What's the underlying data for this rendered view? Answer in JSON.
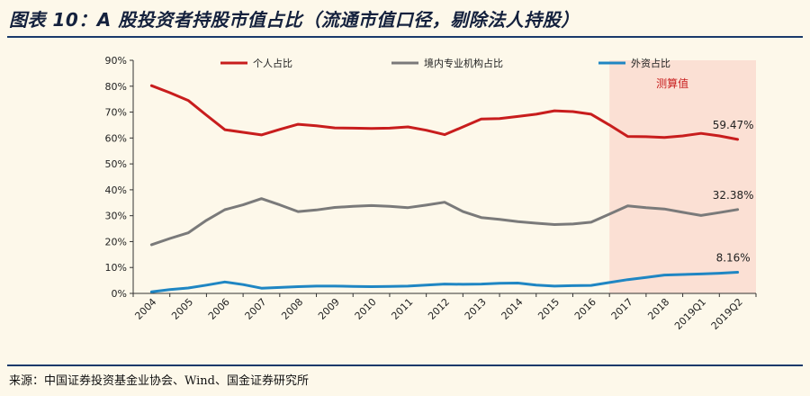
{
  "header": {
    "title": "图表 10：A 股投资者持股市值占比（流通市值口径，剔除法人持股）"
  },
  "footer": {
    "source": "来源：中国证券投资基金业协会、Wind、国金证券研究所"
  },
  "chart_data": {
    "type": "line",
    "title": "图表 10：A 股投资者持股市值占比（流通市值口径，剔除法人持股）",
    "xlabel": "",
    "ylabel": "",
    "ylim": [
      0,
      90
    ],
    "yticks": [
      "0%",
      "10%",
      "20%",
      "30%",
      "40%",
      "50%",
      "60%",
      "70%",
      "80%",
      "90%"
    ],
    "categories": [
      "2004",
      "2005",
      "2006",
      "2007",
      "2008",
      "2009",
      "2010",
      "2011",
      "2012",
      "2013",
      "2014",
      "2015",
      "2016",
      "2017",
      "2018",
      "2019Q1",
      "2019Q2"
    ],
    "x": [
      0,
      0.5,
      1,
      1.5,
      2,
      2.5,
      3,
      3.5,
      4,
      4.5,
      5,
      5.5,
      6,
      6.5,
      7,
      7.5,
      8,
      8.5,
      9,
      9.5,
      10,
      10.5,
      11,
      11.5,
      12,
      12.5,
      13,
      13.5,
      14,
      14.5,
      15,
      15.5,
      16
    ],
    "series": [
      {
        "name": "个人占比",
        "color": "#c81d1d",
        "values": [
          80.2,
          77.5,
          74.5,
          68.8,
          63.2,
          62.2,
          61.2,
          63.3,
          65.3,
          64.7,
          63.9,
          63.8,
          63.7,
          63.8,
          64.3,
          63.0,
          61.3,
          64.3,
          67.3,
          67.5,
          68.3,
          69.2,
          70.5,
          70.2,
          69.2,
          65.0,
          60.6,
          60.5,
          60.2,
          60.8,
          61.8,
          60.8,
          59.47
        ]
      },
      {
        "name": "境内专业机构占比",
        "color": "#7a7a7a",
        "values": [
          18.8,
          21.2,
          23.4,
          28.2,
          32.3,
          34.2,
          36.6,
          34.2,
          31.6,
          32.2,
          33.2,
          33.6,
          33.9,
          33.6,
          33.1,
          34.1,
          35.2,
          31.6,
          29.3,
          28.6,
          27.7,
          27.1,
          26.6,
          26.8,
          27.5,
          30.6,
          33.8,
          33.1,
          32.6,
          31.3,
          30.1,
          31.2,
          32.38
        ]
      },
      {
        "name": "外资占比",
        "color": "#1f86c3",
        "values": [
          0.6,
          1.5,
          2.1,
          3.2,
          4.4,
          3.4,
          2.0,
          2.3,
          2.6,
          2.8,
          2.8,
          2.7,
          2.6,
          2.7,
          2.8,
          3.2,
          3.6,
          3.5,
          3.6,
          3.9,
          4.0,
          3.2,
          2.8,
          3.0,
          3.1,
          4.2,
          5.3,
          6.2,
          7.1,
          7.3,
          7.5,
          7.8,
          8.16
        ]
      }
    ],
    "annotations": [
      {
        "series": "个人占比",
        "text": "59.47%"
      },
      {
        "series": "境内专业机构占比",
        "text": "32.38%"
      },
      {
        "series": "外资占比",
        "text": "8.16%"
      }
    ],
    "shaded_region": {
      "from": "2017",
      "to": "2019Q2",
      "label": "测算值",
      "color": "#fbe0d4"
    },
    "legend": "top"
  }
}
